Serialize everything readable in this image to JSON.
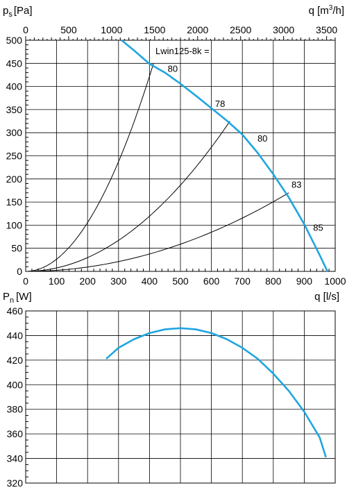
{
  "charts": {
    "pressure": {
      "ylabel_main": "p",
      "ylabel_sub": "s",
      "ylabel_unit": "[Pa]",
      "xtop_label_main": "q [m",
      "xtop_label_sup": "3",
      "xtop_label_end": "/h]",
      "xbottom_label": "q [l/s]",
      "annotation": "Lwin125-8k ="
    },
    "power": {
      "ylabel_main": "P",
      "ylabel_sub": "n",
      "ylabel_unit": "[W]",
      "xlabel": "q [l/s]"
    }
  },
  "chart_data": [
    {
      "type": "line",
      "x_unit": "l/s",
      "y_unit": "Pa",
      "xlim": [
        0,
        1000
      ],
      "ylim": [
        0,
        500
      ],
      "x_ticks": [
        0,
        100,
        200,
        300,
        400,
        500,
        600,
        700,
        800,
        900,
        1000
      ],
      "y_ticks": [
        0,
        50,
        100,
        150,
        200,
        250,
        300,
        350,
        400,
        450,
        500
      ],
      "x2_ticks": [
        0,
        500,
        1000,
        1500,
        2000,
        2500,
        3000,
        3500
      ],
      "x2_per_x": 3.6,
      "grid": true,
      "fan_curve": {
        "color": "#1ea5e0",
        "x": [
          310,
          350,
          400,
          450,
          500,
          550,
          600,
          650,
          700,
          750,
          800,
          850,
          900,
          950,
          975
        ],
        "y": [
          500,
          478,
          449,
          430,
          406,
          380,
          353,
          326,
          296,
          256,
          210,
          160,
          102,
          35,
          0
        ]
      },
      "system_curves": [
        {
          "x_end": 413,
          "y_end": 450
        },
        {
          "x_end": 660,
          "y_end": 325
        },
        {
          "x_end": 850,
          "y_end": 170
        }
      ],
      "noise_labels": [
        {
          "text": "80",
          "x": 475,
          "y": 432
        },
        {
          "text": "78",
          "x": 628,
          "y": 356
        },
        {
          "text": "80",
          "x": 765,
          "y": 281
        },
        {
          "text": "83",
          "x": 875,
          "y": 181
        },
        {
          "text": "85",
          "x": 945,
          "y": 88
        }
      ]
    },
    {
      "type": "line",
      "x_unit": "l/s",
      "y_unit": "W",
      "xlim": [
        0,
        1000
      ],
      "ylim": [
        320,
        460
      ],
      "y_ticks": [
        320,
        340,
        360,
        380,
        400,
        420,
        440,
        460
      ],
      "grid": true,
      "power_curve": {
        "color": "#1ea5e0",
        "x": [
          260,
          300,
          350,
          400,
          450,
          500,
          550,
          600,
          650,
          700,
          750,
          800,
          850,
          900,
          950,
          970
        ],
        "y": [
          421,
          430,
          437,
          442,
          445,
          446,
          445,
          442,
          437,
          430,
          421,
          409,
          395,
          378,
          357,
          341
        ]
      }
    }
  ]
}
